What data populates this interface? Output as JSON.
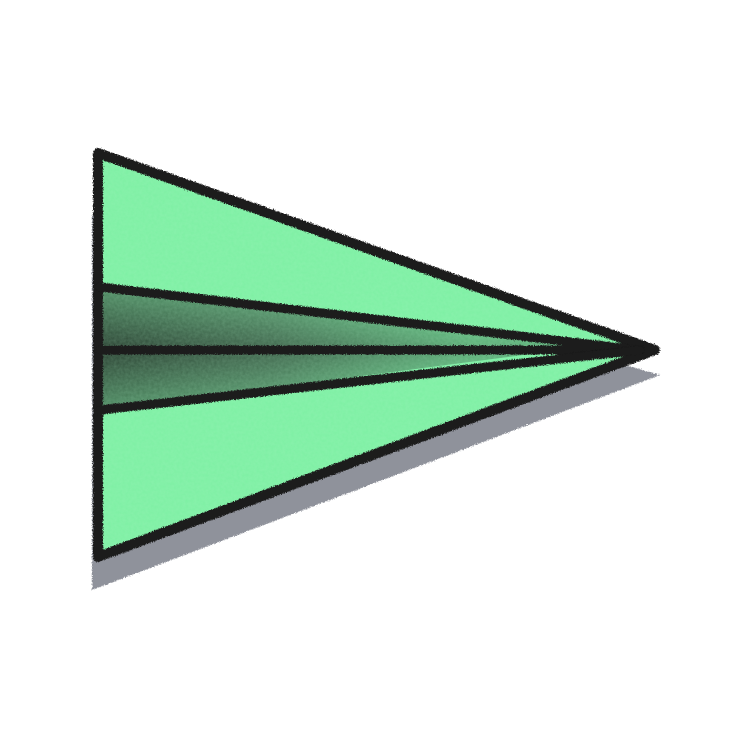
{
  "illustration": {
    "icon": "paper-airplane-icon",
    "colors": {
      "fill": "#7ef0a4",
      "fill_highlight": "#9bf6b8",
      "outline": "#1a1a1a",
      "shadow": "#8f929b",
      "fold_shadow_dark": "#1f2f25",
      "fold_shadow_mid": "#4f7b5e",
      "background": "#ffffff"
    }
  }
}
